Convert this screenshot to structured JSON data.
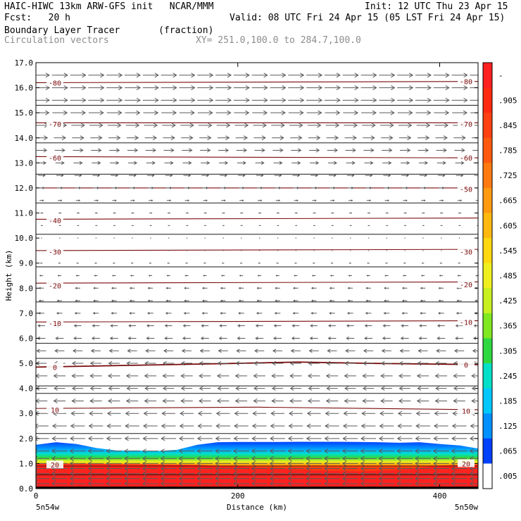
{
  "header": {
    "model_line": "HAIC-HIWC 13km ARW-GFS init   NCAR/MMM",
    "init_line": "Init: 12 UTC Thu 23 Apr 15",
    "fcst_line": "Fcst:   20 h",
    "valid_line": "Valid: 08 UTC Fri 24 Apr 15 (05 LST Fri 24 Apr 15)",
    "field_line": "Boundary Layer Tracer       (fraction)",
    "vector_line": "Circulation vectors",
    "xy_line": "XY= 251.0,100.0 to 284.7,100.0"
  },
  "chart_data": {
    "type": "heatmap",
    "title": "Boundary Layer Tracer",
    "units": "(fraction)",
    "xlabel": "Distance (km)",
    "ylabel": "Height (km)",
    "xlim": [
      0,
      438
    ],
    "ylim": [
      0,
      17
    ],
    "x_ticks": [
      0,
      200,
      400
    ],
    "y_ticks": [
      "0.0",
      "1.0",
      "2.0",
      "3.0",
      "4.0",
      "5.0",
      "6.0",
      "7.0",
      "8.0",
      "9.0",
      "10.0",
      "11.0",
      "12.0",
      "13.0",
      "14.0",
      "15.0",
      "16.0",
      "17.0"
    ],
    "x_endpoints": {
      "left": "5n54w",
      "right": "5n50w"
    },
    "colorbar_labels": [
      "-",
      ".905",
      ".845",
      ".785",
      ".725",
      ".665",
      ".605",
      ".545",
      ".485",
      ".425",
      ".365",
      ".305",
      ".245",
      ".185",
      ".125",
      ".065",
      ".005"
    ],
    "colorbar_colors": [
      "#ff2020",
      "#ff2a10",
      "#ff4010",
      "#ff5a10",
      "#ff7a10",
      "#ff9a10",
      "#ffb810",
      "#ffd810",
      "#f0f020",
      "#c8f020",
      "#80e820",
      "#30d840",
      "#00e0c8",
      "#00c8ff",
      "#0090ff",
      "#0040ff",
      "#ffffff"
    ],
    "tracer_top_km": [
      [
        0,
        1.75
      ],
      [
        20,
        1.85
      ],
      [
        40,
        1.78
      ],
      [
        60,
        1.62
      ],
      [
        80,
        1.52
      ],
      [
        100,
        1.52
      ],
      [
        120,
        1.5
      ],
      [
        140,
        1.55
      ],
      [
        160,
        1.75
      ],
      [
        180,
        1.85
      ],
      [
        200,
        1.86
      ],
      [
        220,
        1.86
      ],
      [
        240,
        1.86
      ],
      [
        260,
        1.87
      ],
      [
        280,
        1.87
      ],
      [
        300,
        1.87
      ],
      [
        320,
        1.86
      ],
      [
        340,
        1.85
      ],
      [
        360,
        1.83
      ],
      [
        380,
        1.85
      ],
      [
        400,
        1.78
      ],
      [
        420,
        1.72
      ],
      [
        438,
        1.6
      ]
    ],
    "red_core_top_km": [
      [
        0,
        1.0
      ],
      [
        40,
        1.0
      ],
      [
        80,
        0.98
      ],
      [
        120,
        0.97
      ],
      [
        160,
        0.95
      ],
      [
        200,
        0.88
      ],
      [
        240,
        0.82
      ],
      [
        280,
        0.72
      ],
      [
        320,
        0.68
      ],
      [
        360,
        0.75
      ],
      [
        400,
        0.92
      ],
      [
        438,
        0.97
      ]
    ],
    "isotherms": [
      {
        "label": "20",
        "values": [
          [
            0,
            0.9
          ],
          [
            438,
            0.9
          ]
        ],
        "label_left_km": 0.95,
        "label_right": "20",
        "label_right_km": 1.0
      },
      {
        "label": "10",
        "values": [
          [
            0,
            3.2
          ],
          [
            220,
            3.25
          ],
          [
            438,
            3.15
          ]
        ],
        "label_left_km": 3.15,
        "label_right": "10",
        "label_right_km": 3.1
      },
      {
        "label": "0",
        "values": [
          [
            0,
            4.85
          ],
          [
            200,
            5.0
          ],
          [
            260,
            5.05
          ],
          [
            330,
            5.0
          ],
          [
            438,
            4.95
          ]
        ],
        "label_left_km": 4.85,
        "label_right": "0",
        "label_right_km": 4.95
      },
      {
        "label": "-10",
        "values": [
          [
            0,
            6.65
          ],
          [
            438,
            6.7
          ]
        ],
        "label_left_km": 6.6,
        "label_right": "-10",
        "label_right_km": 6.65
      },
      {
        "label": "-20",
        "values": [
          [
            0,
            8.2
          ],
          [
            438,
            8.25
          ]
        ],
        "label_left_km": 8.1,
        "label_right": "-20",
        "label_right_km": 8.15
      },
      {
        "label": "-30",
        "values": [
          [
            0,
            9.5
          ],
          [
            438,
            9.55
          ]
        ],
        "label_left_km": 9.45,
        "label_right": "-30",
        "label_right_km": 9.45
      },
      {
        "label": "-40",
        "values": [
          [
            0,
            10.75
          ],
          [
            438,
            10.8
          ]
        ],
        "label_left_km": 10.7,
        "label_right": "",
        "label_right_km": 0
      },
      {
        "label": "-50",
        "values": [
          [
            0,
            12.0
          ],
          [
            438,
            12.0
          ]
        ],
        "label_left_km": 0,
        "label_right": "-50",
        "label_right_km": 11.95
      },
      {
        "label": "-60",
        "values": [
          [
            0,
            13.25
          ],
          [
            438,
            13.2
          ]
        ],
        "label_left_km": 13.2,
        "label_right": "-60",
        "label_right_km": 13.2
      },
      {
        "label": "-70",
        "values": [
          [
            0,
            14.6
          ],
          [
            438,
            14.6
          ]
        ],
        "label_left_km": 14.55,
        "label_right": "-70",
        "label_right_km": 14.55
      },
      {
        "label": "-80",
        "values": [
          [
            0,
            16.2
          ],
          [
            438,
            16.25
          ]
        ],
        "label_left_km": 16.2,
        "label_right": "-80",
        "label_right_km": 16.25
      }
    ],
    "theta_lines_km": [
      0.55,
      2.2,
      3.8,
      4.1,
      5.2,
      5.8,
      7.45,
      8.85,
      10.15,
      11.4,
      12.55,
      13.8,
      15.3
    ],
    "wind_columns_km": [
      0,
      18,
      36,
      54,
      72,
      90,
      108,
      126,
      144,
      162,
      180,
      198,
      216,
      234,
      252,
      270,
      288,
      306,
      324,
      342,
      360,
      378,
      396,
      414,
      432
    ],
    "wind_profile": [
      {
        "z": 0.2,
        "u": -1.0,
        "w": 0.0
      },
      {
        "z": 0.4,
        "u": -1.0,
        "w": 0.0
      },
      {
        "z": 0.6,
        "u": -1.0,
        "w": 0.0
      },
      {
        "z": 0.8,
        "u": -1.0,
        "w": 0.0
      },
      {
        "z": 1.0,
        "u": -1.0,
        "w": 0.0
      },
      {
        "z": 1.2,
        "u": -1.0,
        "w": 0.0
      },
      {
        "z": 1.5,
        "u": -1.0,
        "w": 0.0
      },
      {
        "z": 2.0,
        "u": -0.95,
        "w": 0.0
      },
      {
        "z": 2.5,
        "u": -0.9,
        "w": 0.0
      },
      {
        "z": 3.0,
        "u": -0.85,
        "w": 0.0
      },
      {
        "z": 3.5,
        "u": -0.75,
        "w": 0.0
      },
      {
        "z": 4.0,
        "u": -0.7,
        "w": 0.0
      },
      {
        "z": 4.5,
        "u": -0.75,
        "w": 0.0
      },
      {
        "z": 5.0,
        "u": -0.7,
        "w": 0.0
      },
      {
        "z": 5.5,
        "u": -0.6,
        "w": 0.0
      },
      {
        "z": 6.0,
        "u": -0.5,
        "w": 0.0
      },
      {
        "z": 6.5,
        "u": -0.45,
        "w": 0.0
      },
      {
        "z": 7.0,
        "u": -0.35,
        "w": 0.0
      },
      {
        "z": 7.5,
        "u": -0.3,
        "w": 0.0
      },
      {
        "z": 8.0,
        "u": -0.3,
        "w": 0.0
      },
      {
        "z": 8.5,
        "u": -0.2,
        "w": 0.0
      },
      {
        "z": 9.0,
        "u": -0.12,
        "w": 0.0
      },
      {
        "z": 9.5,
        "u": -0.08,
        "w": 0.0
      },
      {
        "z": 10.0,
        "u": 0.05,
        "w": 0.0
      },
      {
        "z": 10.5,
        "u": 0.1,
        "w": 0.0
      },
      {
        "z": 11.0,
        "u": 0.15,
        "w": 0.0
      },
      {
        "z": 11.5,
        "u": 0.25,
        "w": 0.0
      },
      {
        "z": 12.0,
        "u": 0.35,
        "w": 0.0
      },
      {
        "z": 12.5,
        "u": 0.45,
        "w": 0.0
      },
      {
        "z": 13.0,
        "u": 0.55,
        "w": 0.0
      },
      {
        "z": 13.5,
        "u": 0.65,
        "w": 0.0
      },
      {
        "z": 14.0,
        "u": 0.75,
        "w": 0.0
      },
      {
        "z": 14.5,
        "u": 0.85,
        "w": 0.0
      },
      {
        "z": 15.0,
        "u": 0.95,
        "w": 0.0
      },
      {
        "z": 15.5,
        "u": 1.0,
        "w": 0.0
      },
      {
        "z": 16.0,
        "u": 1.0,
        "w": 0.0
      },
      {
        "z": 16.5,
        "u": 1.0,
        "w": 0.0
      }
    ]
  }
}
